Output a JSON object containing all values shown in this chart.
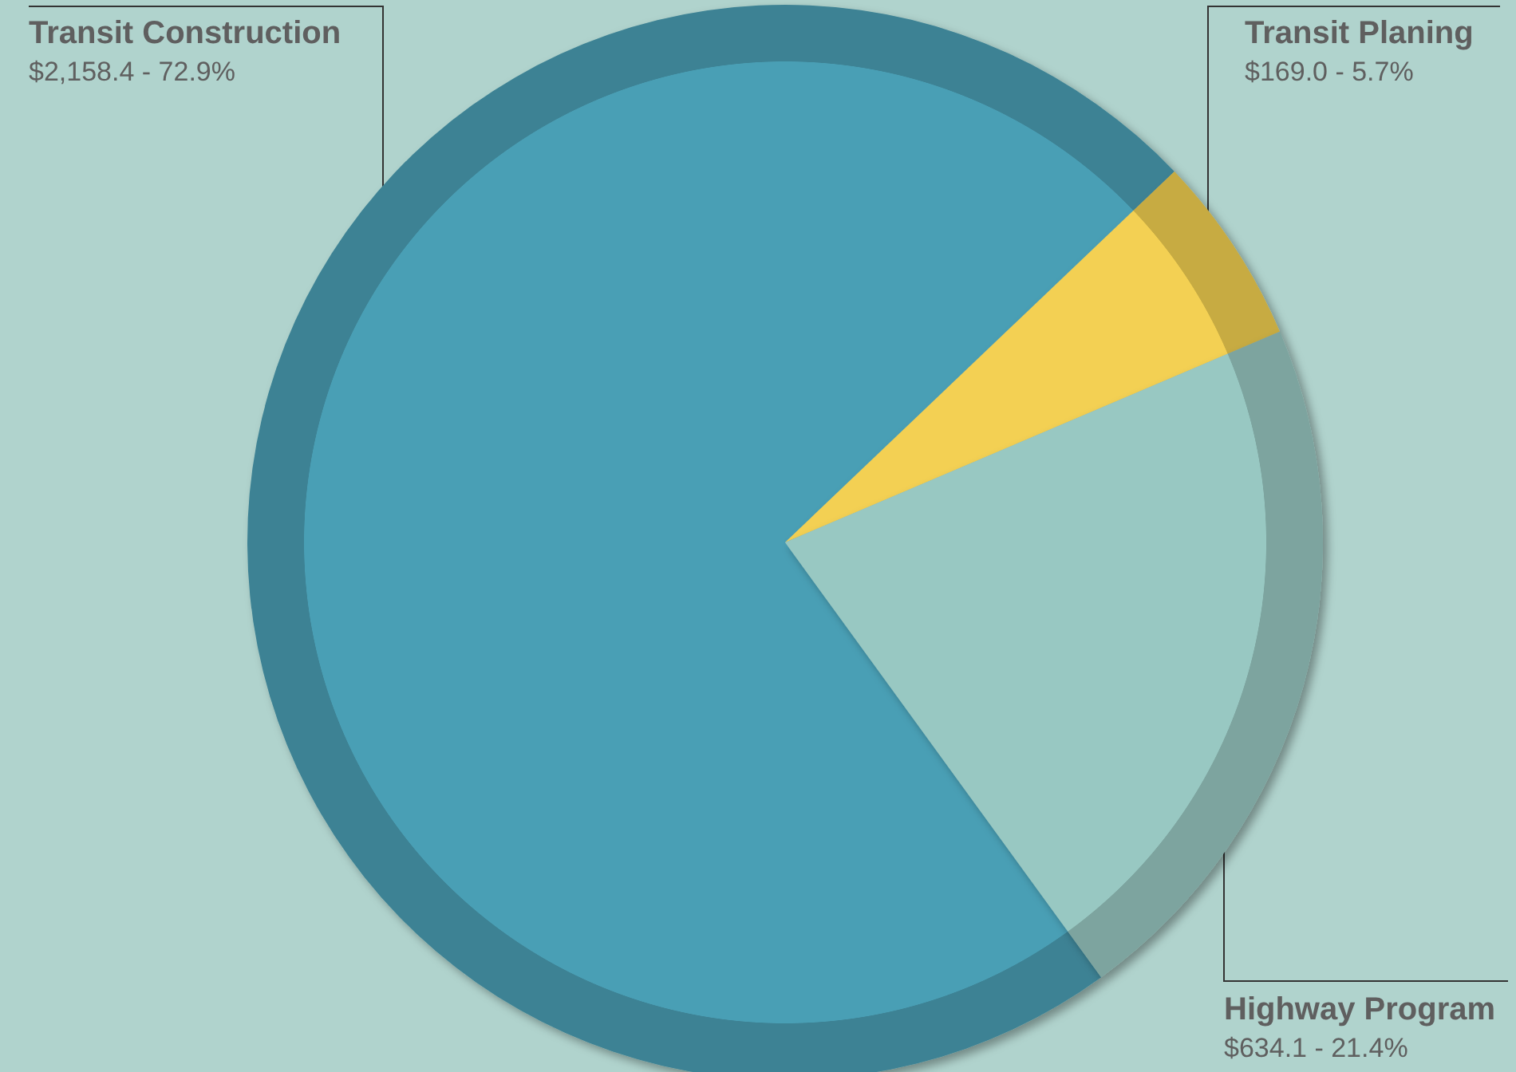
{
  "chart_data": {
    "type": "pie",
    "categories": [
      "Transit Construction",
      "Transit Planing",
      "Highway Program"
    ],
    "values": [
      2158.4,
      169.0,
      634.1
    ],
    "value_labels": [
      "$2,158.4 - 72.9%",
      "$169.0 - 5.7%",
      "$634.1 - 21.4%"
    ],
    "colors": [
      "#4a9fb5",
      "#f3d052",
      "#98c8c2"
    ],
    "legend": false
  }
}
